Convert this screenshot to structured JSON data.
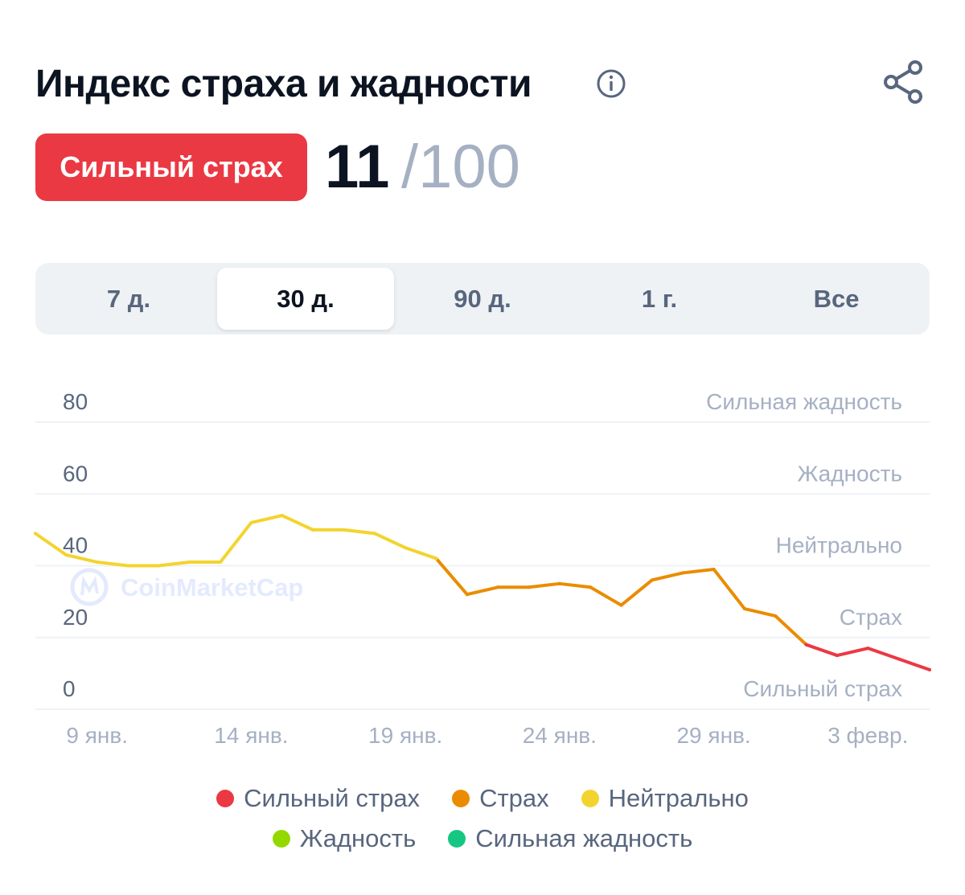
{
  "header": {
    "title": "Индекс страха и жадности",
    "info_icon": "info-icon",
    "share_icon": "share-icon"
  },
  "score": {
    "badge_label": "Сильный страх",
    "badge_color": "#ea3943",
    "value": "11",
    "max": "/100"
  },
  "tabs": [
    {
      "label": "7 д.",
      "active": false
    },
    {
      "label": "30 д.",
      "active": true
    },
    {
      "label": "90 д.",
      "active": false
    },
    {
      "label": "1 г.",
      "active": false
    },
    {
      "label": "Все",
      "active": false
    }
  ],
  "watermark": "CoinMarketCap",
  "chart_data": {
    "type": "line",
    "title": "",
    "xlabel": "",
    "ylabel": "",
    "ylim": [
      0,
      80
    ],
    "y_ticks": [
      80,
      60,
      40,
      20,
      0
    ],
    "zone_labels": [
      {
        "y": 80,
        "label": "Сильная жадность"
      },
      {
        "y": 60,
        "label": "Жадность"
      },
      {
        "y": 40,
        "label": "Нейтрально"
      },
      {
        "y": 20,
        "label": "Страх"
      },
      {
        "y": 0,
        "label": "Сильный страх"
      }
    ],
    "x_tick_labels": [
      "9 янв.",
      "14 янв.",
      "19 янв.",
      "24 янв.",
      "29 янв.",
      "3 февр."
    ],
    "x_tick_index": [
      2,
      7,
      12,
      17,
      22,
      27
    ],
    "grid": true,
    "values": [
      49,
      43,
      41,
      40,
      40,
      41,
      41,
      52,
      54,
      50,
      50,
      49,
      45,
      42,
      32,
      34,
      34,
      35,
      34,
      29,
      36,
      38,
      39,
      28,
      26,
      18,
      15,
      17,
      14,
      11
    ],
    "zone_colors": {
      "extreme_fear": "#ea3943",
      "fear": "#ea8c00",
      "neutral": "#f3d42f",
      "greed": "#93d900",
      "extreme_greed": "#16c784"
    },
    "legend": [
      {
        "label": "Сильный страх",
        "color": "#ea3943"
      },
      {
        "label": "Страх",
        "color": "#ea8c00"
      },
      {
        "label": "Нейтрально",
        "color": "#f3d42f"
      },
      {
        "label": "Жадность",
        "color": "#93d900"
      },
      {
        "label": "Сильная жадность",
        "color": "#16c784"
      }
    ]
  }
}
